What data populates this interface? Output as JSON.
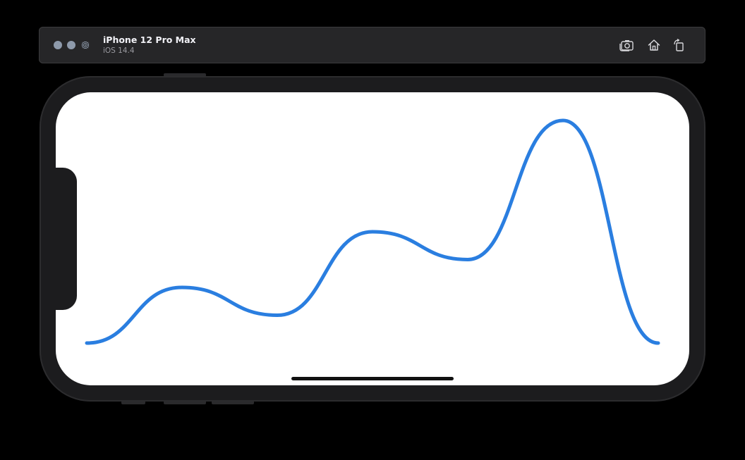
{
  "window": {
    "device_name": "iPhone 12 Pro Max",
    "os_version": "iOS 14.4"
  },
  "toolbar": {
    "icons": [
      "camera-icon",
      "home-icon",
      "rotate-icon"
    ]
  },
  "colors": {
    "window_bg": "#000000",
    "titlebar_bg": "#262628",
    "traffic_light": "#8e9aab",
    "line_color": "#2a7ee0",
    "screen_bg": "#ffffff",
    "bezel": "#1c1c1e"
  },
  "chart_data": {
    "type": "line",
    "smooth": true,
    "x": [
      0,
      1,
      2,
      3,
      4,
      5,
      6
    ],
    "values": [
      0,
      40,
      20,
      80,
      60,
      160,
      0
    ],
    "ylim": [
      0,
      160
    ],
    "grid": false,
    "axes_visible": false
  }
}
